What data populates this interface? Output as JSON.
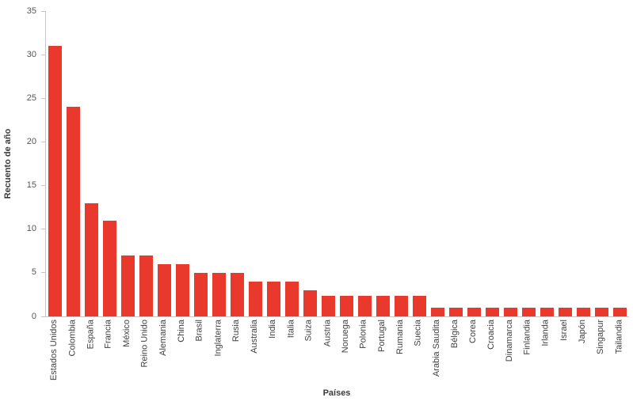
{
  "chart_data": {
    "type": "bar",
    "xlabel": "Países",
    "ylabel": "Recuento de año",
    "ylim": [
      0,
      35
    ],
    "yticks": [
      0,
      5,
      10,
      15,
      20,
      25,
      30,
      35
    ],
    "grid": false,
    "legend": false,
    "categories": [
      "Estados Unidos",
      "Colombia",
      "España",
      "Francia",
      "México",
      "Reino Unido",
      "Alemania",
      "China",
      "Brasil",
      "Inglaterra",
      "Rusia",
      "Australia",
      "India",
      "Italia",
      "Suiza",
      "Austria",
      "Noruega",
      "Polonia",
      "Portugal",
      "Rumania",
      "Suecia",
      "Arabia Saudita",
      "Bélgica",
      "Corea",
      "Croacia",
      "Dinamarca",
      "Finlandia",
      "Irlanda",
      "Israel",
      "Japón",
      "Singapur",
      "Tailandia"
    ],
    "values": [
      31,
      24,
      13,
      11,
      7,
      7,
      6,
      6,
      5,
      5,
      5,
      4,
      4,
      4,
      3,
      2.4,
      2.4,
      2.4,
      2.4,
      2.4,
      2.4,
      1,
      1,
      1,
      1,
      1,
      1,
      1,
      1,
      1,
      1,
      1
    ],
    "bar_color": "#e8392c",
    "axis_color": "#c7c7c7",
    "tick_label_color": "#55565a",
    "category_label_color": "#414042",
    "axis_title_color": "#3b3b3d"
  }
}
